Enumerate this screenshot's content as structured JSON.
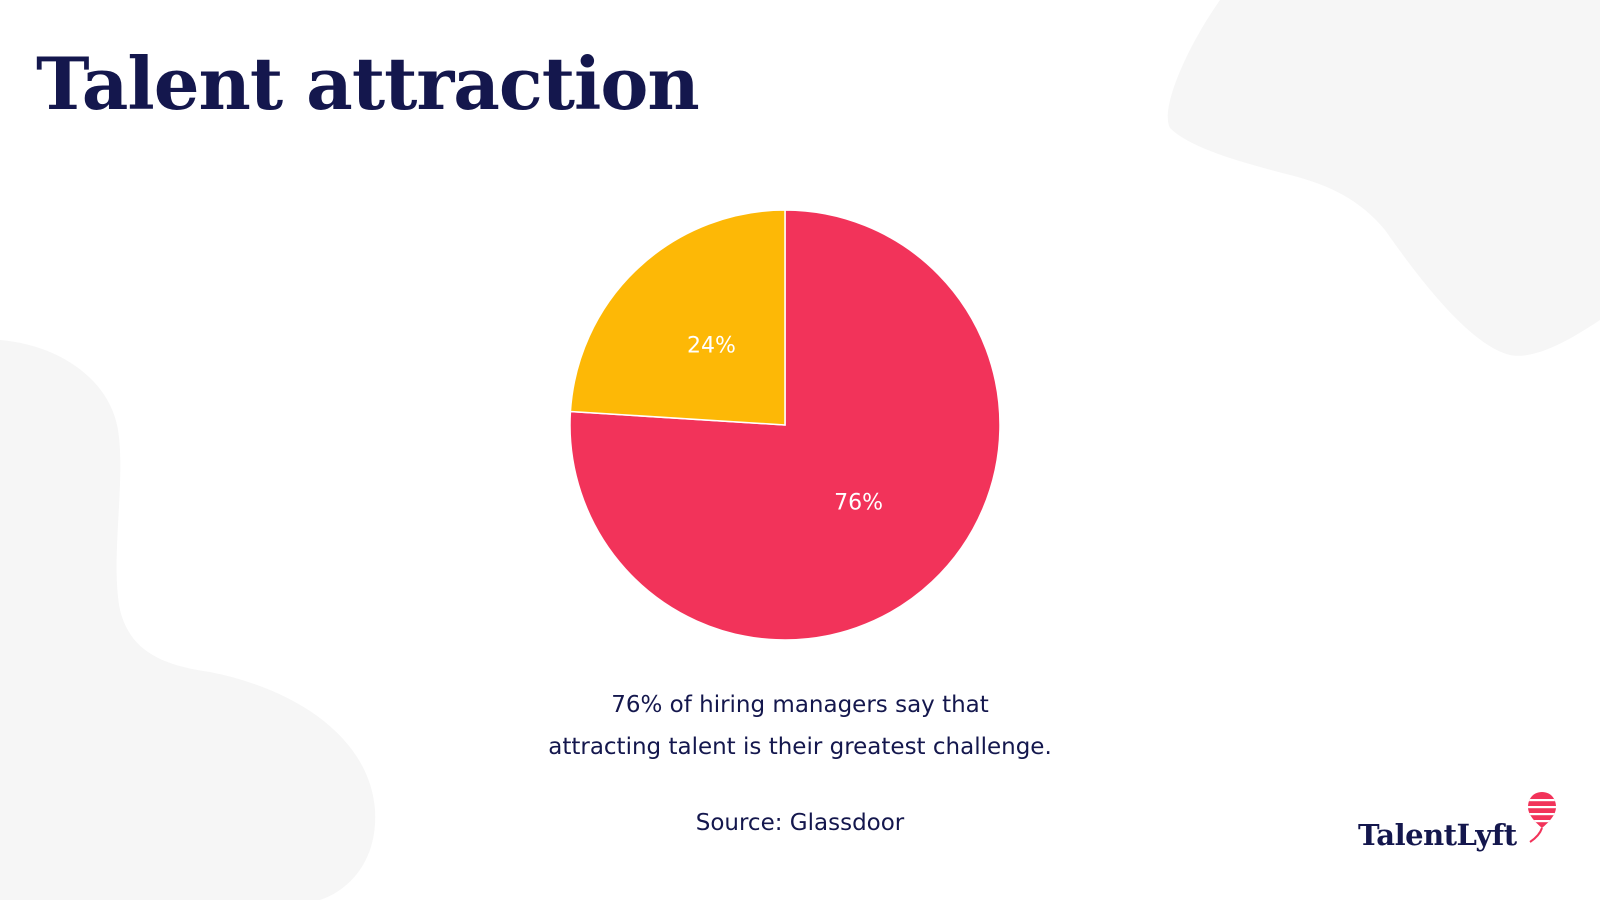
{
  "title": "Talent attraction",
  "colors": {
    "title": "#14174d",
    "text": "#14174d",
    "background_shape": "#f6f6f6",
    "accent_red": "#f2335a",
    "accent_yellow": "#fdb806"
  },
  "chart_data": {
    "type": "pie",
    "slices": [
      {
        "label": "76%",
        "value": 76,
        "color": "#f2335a"
      },
      {
        "label": "24%",
        "value": 24,
        "color": "#fdb806"
      }
    ],
    "start": "top, clockwise",
    "legend": "none"
  },
  "caption": {
    "line1": "76% of hiring managers say that",
    "line2": "attracting talent is their greatest challenge."
  },
  "source": "Source: Glassdoor",
  "logo": {
    "text": "TalentLyft",
    "icon": "balloon-icon"
  }
}
